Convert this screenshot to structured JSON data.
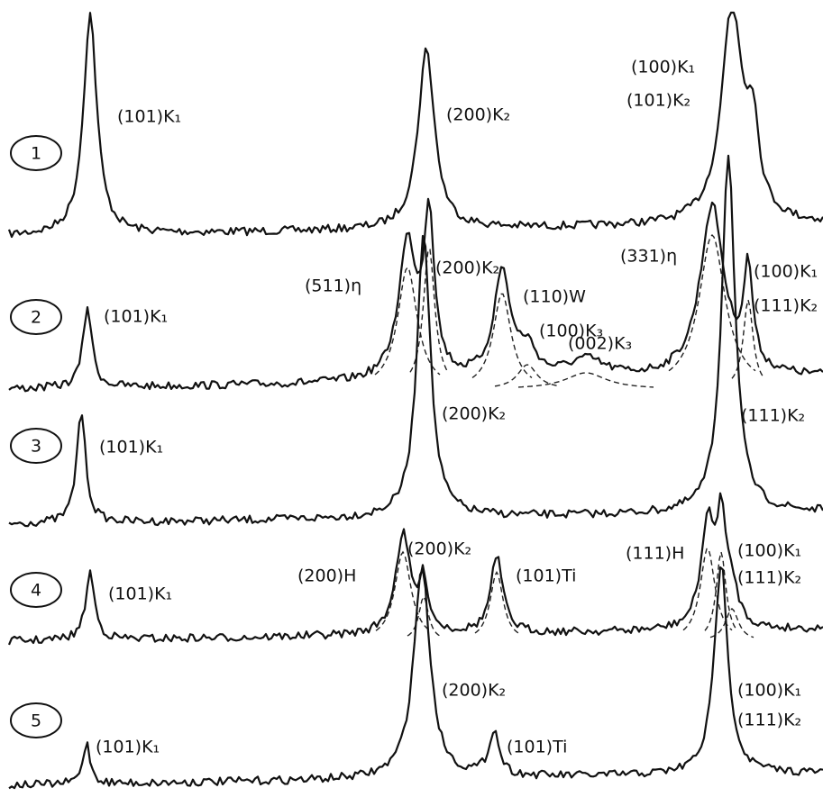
{
  "patterns": [
    {
      "number": "1",
      "labels": [
        "(101)K₁",
        "(200)K₂",
        "(100)K₁",
        "(101)K₂"
      ]
    },
    {
      "number": "2",
      "labels": [
        "(101)K₁",
        "(511)η",
        "(200)K₂",
        "(110)W",
        "(100)K₃",
        "(002)K₃",
        "(331)η",
        "(100)K₁",
        "(111)K₂"
      ]
    },
    {
      "number": "3",
      "labels": [
        "(101)K₁",
        "(200)K₂",
        "(111)K₂"
      ]
    },
    {
      "number": "4",
      "labels": [
        "(101)K₁",
        "(200)H",
        "(200)K₂",
        "(101)Ti",
        "(111)H",
        "(100)K₁",
        "(111)K₂"
      ]
    },
    {
      "number": "5",
      "labels": [
        "(101)K₁",
        "(200)K₂",
        "(101)Ti",
        "(100)K₁",
        "(111)K₂"
      ]
    }
  ]
}
